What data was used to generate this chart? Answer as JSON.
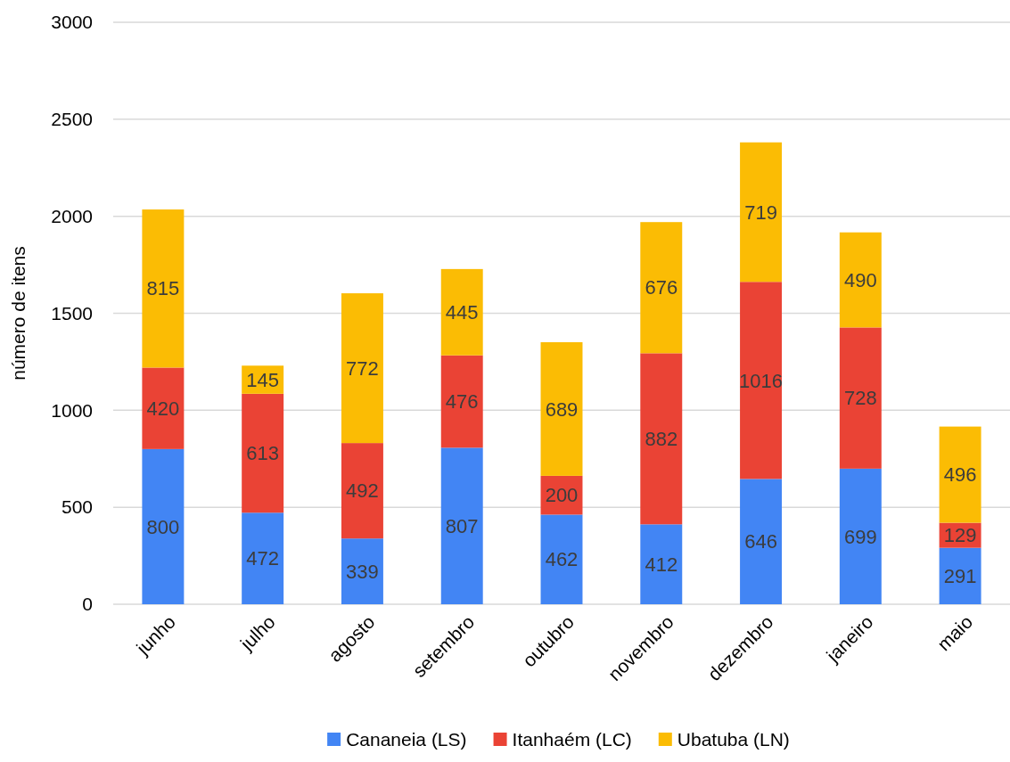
{
  "chart_data": {
    "type": "bar",
    "stacked": true,
    "ylabel": "número de itens",
    "categories": [
      "junho",
      "julho",
      "agosto",
      "setembro",
      "outubro",
      "novembro",
      "dezembro",
      "janeiro",
      "maio"
    ],
    "series": [
      {
        "name": "Cananeia (LS)",
        "color": "#4285f4",
        "values": [
          800,
          472,
          339,
          807,
          462,
          412,
          646,
          699,
          291
        ]
      },
      {
        "name": "Itanhaém (LC)",
        "color": "#ea4335",
        "values": [
          420,
          613,
          492,
          476,
          200,
          882,
          1016,
          728,
          129
        ]
      },
      {
        "name": "Ubatuba (LN)",
        "color": "#fbbc04",
        "values": [
          815,
          145,
          772,
          445,
          689,
          676,
          719,
          490,
          496
        ]
      }
    ],
    "ylim": [
      0,
      3000
    ],
    "yticks": [
      0,
      500,
      1000,
      1500,
      2000,
      2500,
      3000
    ],
    "grid": "y",
    "legend": "bottom",
    "data_labels": true
  }
}
